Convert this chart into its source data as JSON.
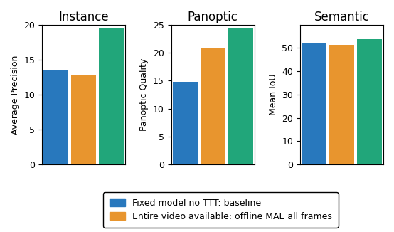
{
  "subplots": [
    {
      "title": "Instance",
      "ylabel": "Average Precision",
      "ylim": [
        0,
        20
      ],
      "yticks": [
        0,
        5,
        10,
        15,
        20
      ],
      "bars": [
        13.4,
        12.8,
        19.4
      ]
    },
    {
      "title": "Panoptic",
      "ylabel": "Panoptic Quality",
      "ylim": [
        0,
        25
      ],
      "yticks": [
        0,
        5,
        10,
        15,
        20,
        25
      ],
      "bars": [
        14.8,
        20.7,
        24.3
      ]
    },
    {
      "title": "Semantic",
      "ylabel": "Mean IoU",
      "ylim": [
        0,
        60
      ],
      "yticks": [
        0,
        10,
        20,
        30,
        40,
        50
      ],
      "bars": [
        52.2,
        51.2,
        53.8
      ]
    }
  ],
  "bar_colors": [
    "#2878bd",
    "#e8952e",
    "#21a67a"
  ],
  "legend_labels": [
    "Fixed model no TTT: baseline",
    "Entire video available: offline MAE all frames"
  ],
  "legend_colors": [
    "#2878bd",
    "#e8952e"
  ],
  "bar_width": 0.9,
  "figure_size": [
    5.54,
    3.26
  ],
  "dpi": 100,
  "title_fontsize": 12,
  "label_fontsize": 9,
  "tick_fontsize": 9,
  "legend_fontsize": 9
}
